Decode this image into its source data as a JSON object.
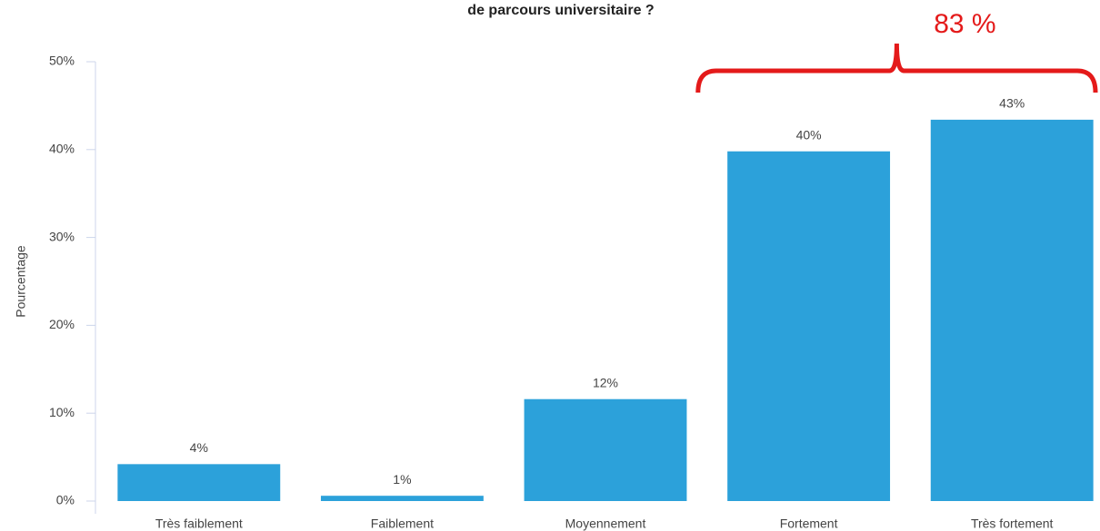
{
  "chart_data": {
    "type": "bar",
    "title": "de parcours universitaire ?",
    "y_label": "Pourcentage",
    "annotation": "83 %",
    "categories": [
      "Très faiblement",
      "Faiblement",
      "Moyennement",
      "Fortement",
      "Très fortement"
    ],
    "values": [
      4.2,
      0.6,
      11.6,
      39.8,
      43.4
    ],
    "value_labels": [
      "4%",
      "1%",
      "12%",
      "40%",
      "43%"
    ],
    "color": "#2ca1da",
    "ylim": [
      0,
      50
    ],
    "yticks": [
      {
        "value": 0,
        "label": "0%"
      },
      {
        "value": 10,
        "label": "10%"
      },
      {
        "value": 20,
        "label": "20%"
      },
      {
        "value": 30,
        "label": "30%"
      },
      {
        "value": 40,
        "label": "40%"
      },
      {
        "value": 50,
        "label": "50%"
      }
    ],
    "grid": false
  }
}
